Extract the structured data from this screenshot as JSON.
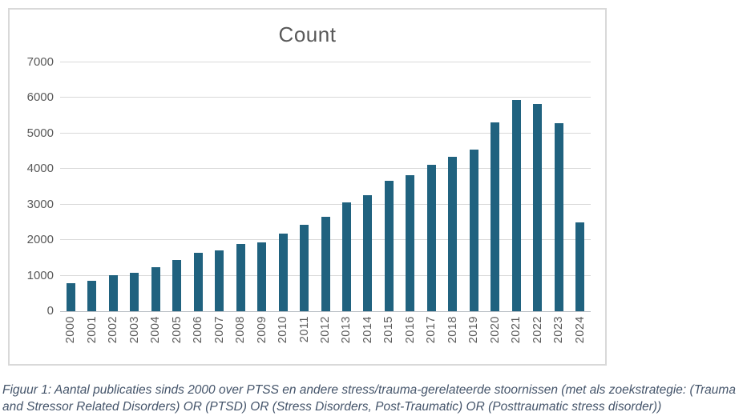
{
  "chart_data": {
    "type": "bar",
    "title": "Count",
    "xlabel": "",
    "ylabel": "",
    "categories": [
      "2000",
      "2001",
      "2002",
      "2003",
      "2004",
      "2005",
      "2006",
      "2007",
      "2008",
      "2009",
      "2010",
      "2011",
      "2012",
      "2013",
      "2014",
      "2015",
      "2016",
      "2017",
      "2018",
      "2019",
      "2020",
      "2021",
      "2022",
      "2023",
      "2024"
    ],
    "values": [
      790,
      860,
      1010,
      1090,
      1230,
      1430,
      1640,
      1720,
      1890,
      1940,
      2190,
      2430,
      2660,
      3070,
      3270,
      3680,
      3830,
      4130,
      4350,
      4540,
      5320,
      5940,
      5830,
      5280,
      2500
    ],
    "ylim": [
      0,
      7000
    ],
    "yticks": [
      0,
      1000,
      2000,
      3000,
      4000,
      5000,
      6000,
      7000
    ],
    "grid": true,
    "legend": false,
    "bar_color": "#20627f",
    "gridline_color": "#d9d9d9",
    "axis_line_color": "#b9bfc5",
    "tick_label_color": "#595959",
    "title_color": "#595959",
    "frame_border_color": "#d9d9d9"
  },
  "caption": {
    "text": "Figuur 1: Aantal publicaties sinds 2000  over PTSS en andere stress/trauma-gerelateerde stoornissen (met als zoekstrategie: (Trauma and Stressor Related Disorders) OR (PTSD) OR (Stress Disorders, Post-Traumatic) OR (Posttraumatic stress disorder))",
    "color": "#44546a"
  }
}
